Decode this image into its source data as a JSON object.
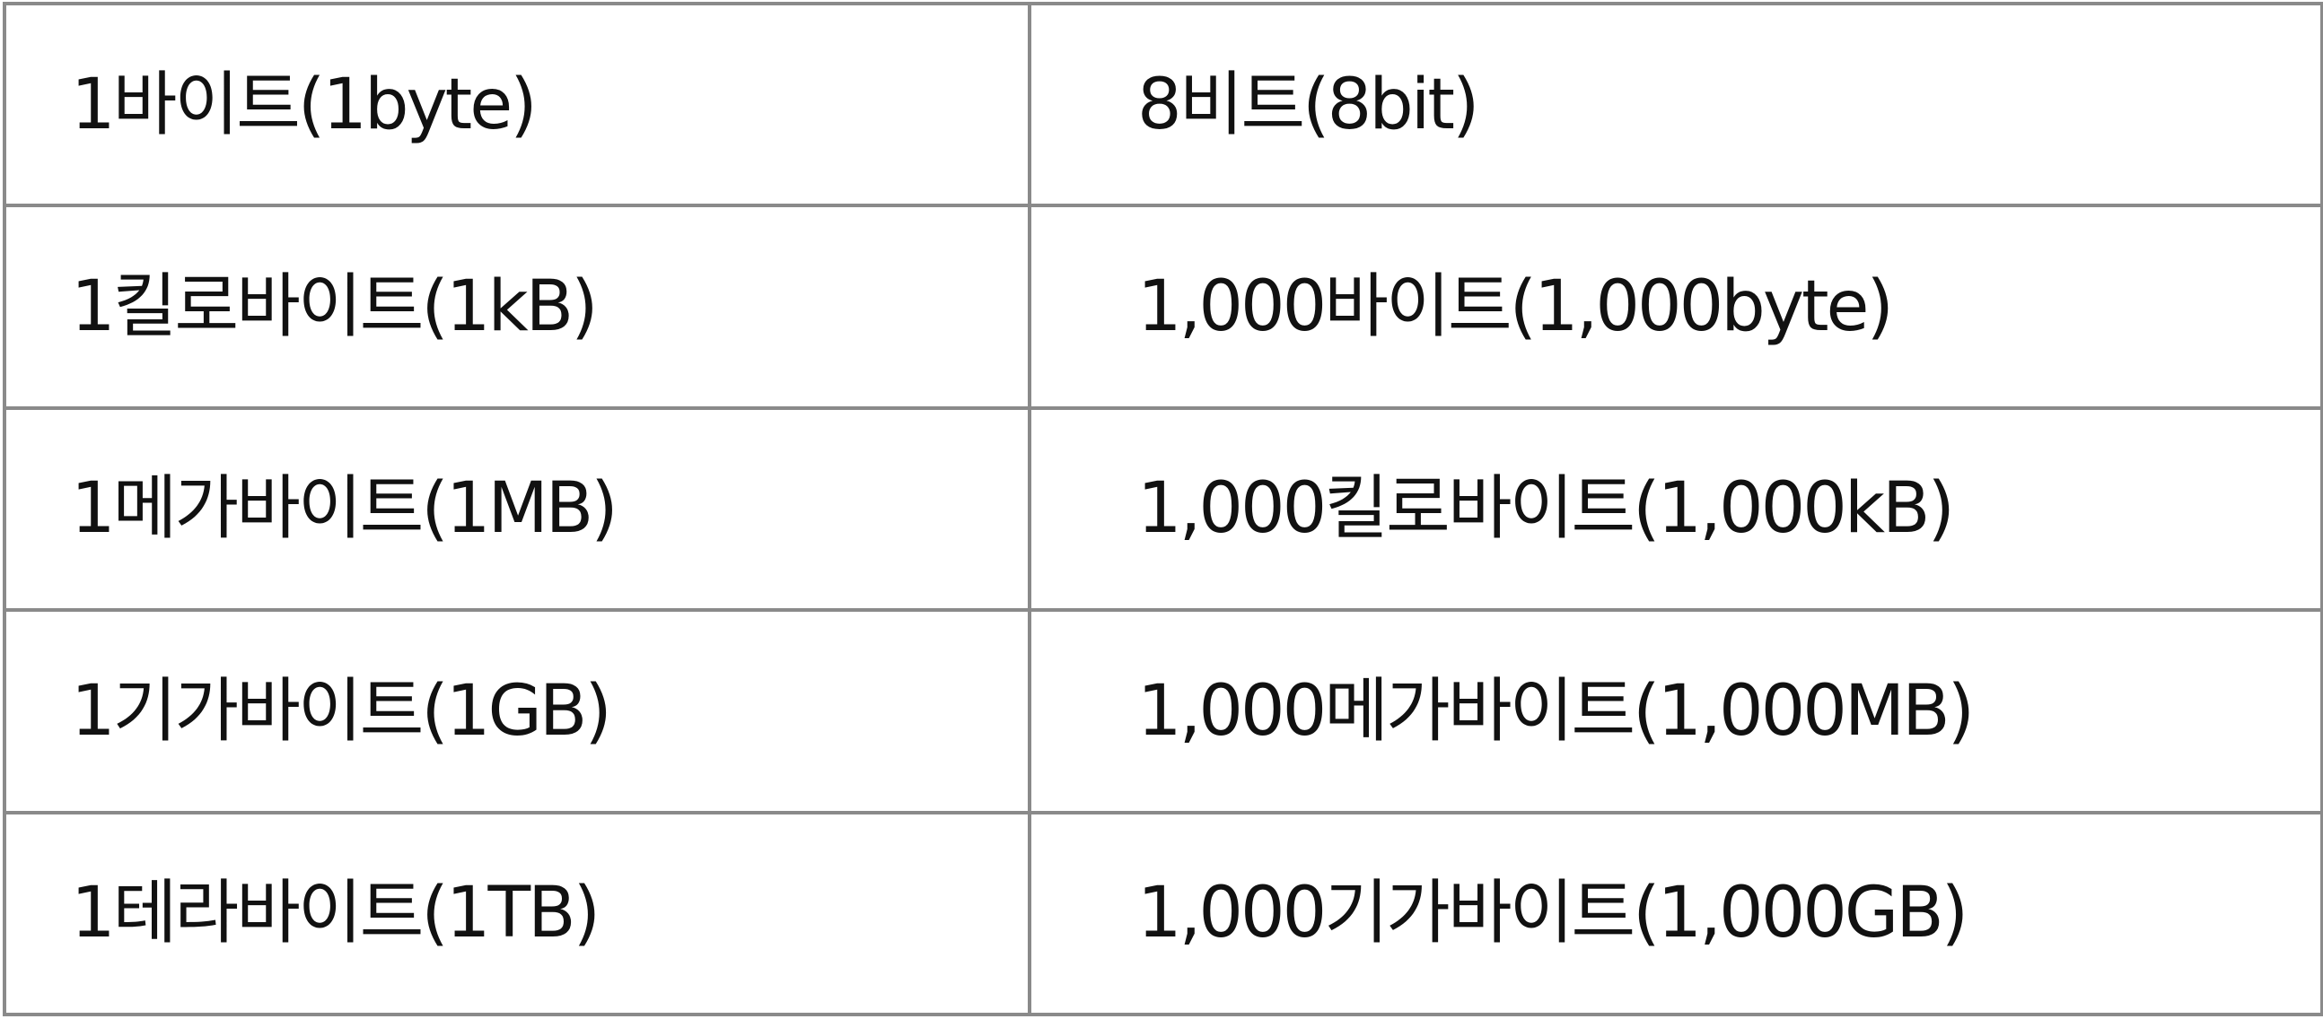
{
  "table": {
    "rows": [
      {
        "unit": "1바이트(1byte)",
        "equals": "8비트(8bit)"
      },
      {
        "unit": "1킬로바이트(1kB)",
        "equals": "1,000바이트(1,000byte)"
      },
      {
        "unit": "1메가바이트(1MB)",
        "equals": "1,000킬로바이트(1,000kB)"
      },
      {
        "unit": "1기가바이트(1GB)",
        "equals": "1,000메가바이트(1,000MB)"
      },
      {
        "unit": "1테라바이트(1TB)",
        "equals": "1,000기가바이트(1,000GB)"
      }
    ]
  }
}
